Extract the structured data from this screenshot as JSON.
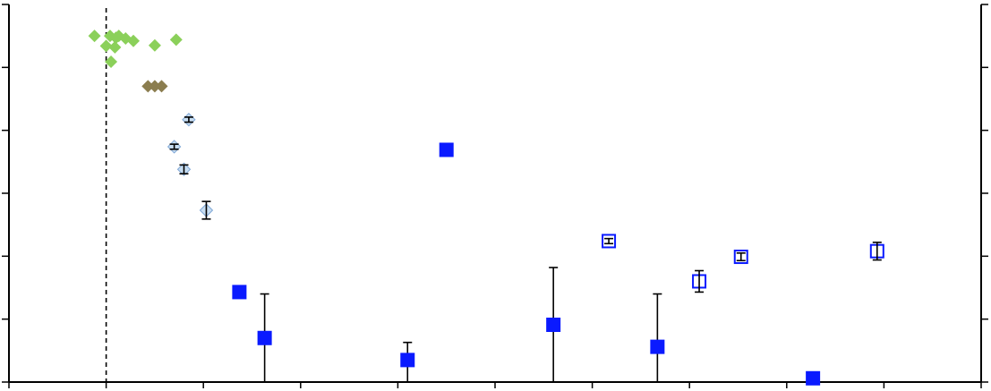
{
  "chart_data": {
    "type": "scatter",
    "title": "",
    "xlabel": "",
    "ylabel": "",
    "xlim": [
      0,
      10
    ],
    "ylim": [
      0,
      6
    ],
    "x_tick_count": 11,
    "y_tick_count": 7,
    "grid": false,
    "reference_line": {
      "x": 1.0,
      "style": "dashed"
    },
    "colors": {
      "green": "#8bd05a",
      "olive": "#8b7d4f",
      "light_blue": "#c8def2",
      "blue": "#0a1aff",
      "black": "#000000"
    },
    "series": [
      {
        "marker": "diamond",
        "fill": "green",
        "points": [
          {
            "x": 0.88,
            "y": 5.5
          },
          {
            "x": 1.04,
            "y": 5.5
          },
          {
            "x": 1.1,
            "y": 5.47
          },
          {
            "x": 1.13,
            "y": 5.5
          },
          {
            "x": 1.2,
            "y": 5.46
          },
          {
            "x": 1.28,
            "y": 5.42
          },
          {
            "x": 1.5,
            "y": 5.35
          },
          {
            "x": 1.72,
            "y": 5.44
          },
          {
            "x": 1.0,
            "y": 5.34
          },
          {
            "x": 1.09,
            "y": 5.32
          },
          {
            "x": 1.05,
            "y": 5.09
          }
        ]
      },
      {
        "marker": "diamond",
        "fill": "olive",
        "points": [
          {
            "x": 1.43,
            "y": 4.7
          },
          {
            "x": 1.5,
            "y": 4.7
          },
          {
            "x": 1.57,
            "y": 4.7
          }
        ]
      },
      {
        "marker": "diamond",
        "fill": "light_blue",
        "points": [
          {
            "x": 1.85,
            "y": 4.17,
            "err": 0.04
          },
          {
            "x": 1.7,
            "y": 3.74,
            "err": 0.04
          },
          {
            "x": 1.8,
            "y": 3.38,
            "err": 0.07
          },
          {
            "x": 2.03,
            "y": 2.73,
            "err": 0.14
          }
        ]
      },
      {
        "marker": "square",
        "fill": "blue",
        "points": [
          {
            "x": 2.37,
            "y": 1.43,
            "err_low": 0.0,
            "err_high": 0.0
          },
          {
            "x": 2.63,
            "y": 0.7,
            "err_low": 0.7,
            "err_high": 0.7
          },
          {
            "x": 4.5,
            "y": 3.69,
            "err_low": 0.0,
            "err_high": 0.0
          },
          {
            "x": 4.1,
            "y": 0.35,
            "err_low": 0.35,
            "err_high": 0.28
          },
          {
            "x": 5.6,
            "y": 0.91,
            "err_low": 0.91,
            "err_high": 0.91
          },
          {
            "x": 6.67,
            "y": 0.56,
            "err_low": 0.56,
            "err_high": 0.84
          },
          {
            "x": 8.27,
            "y": 0.06,
            "err_low": 0.0,
            "err_high": 0.0
          }
        ]
      },
      {
        "marker": "square-open",
        "fill": "blue",
        "points": [
          {
            "x": 6.17,
            "y": 2.24,
            "err": 0.04
          },
          {
            "x": 7.1,
            "y": 1.6,
            "err": 0.17
          },
          {
            "x": 7.53,
            "y": 1.99,
            "err": 0.06
          },
          {
            "x": 8.93,
            "y": 2.08,
            "err": 0.14
          }
        ]
      }
    ]
  }
}
